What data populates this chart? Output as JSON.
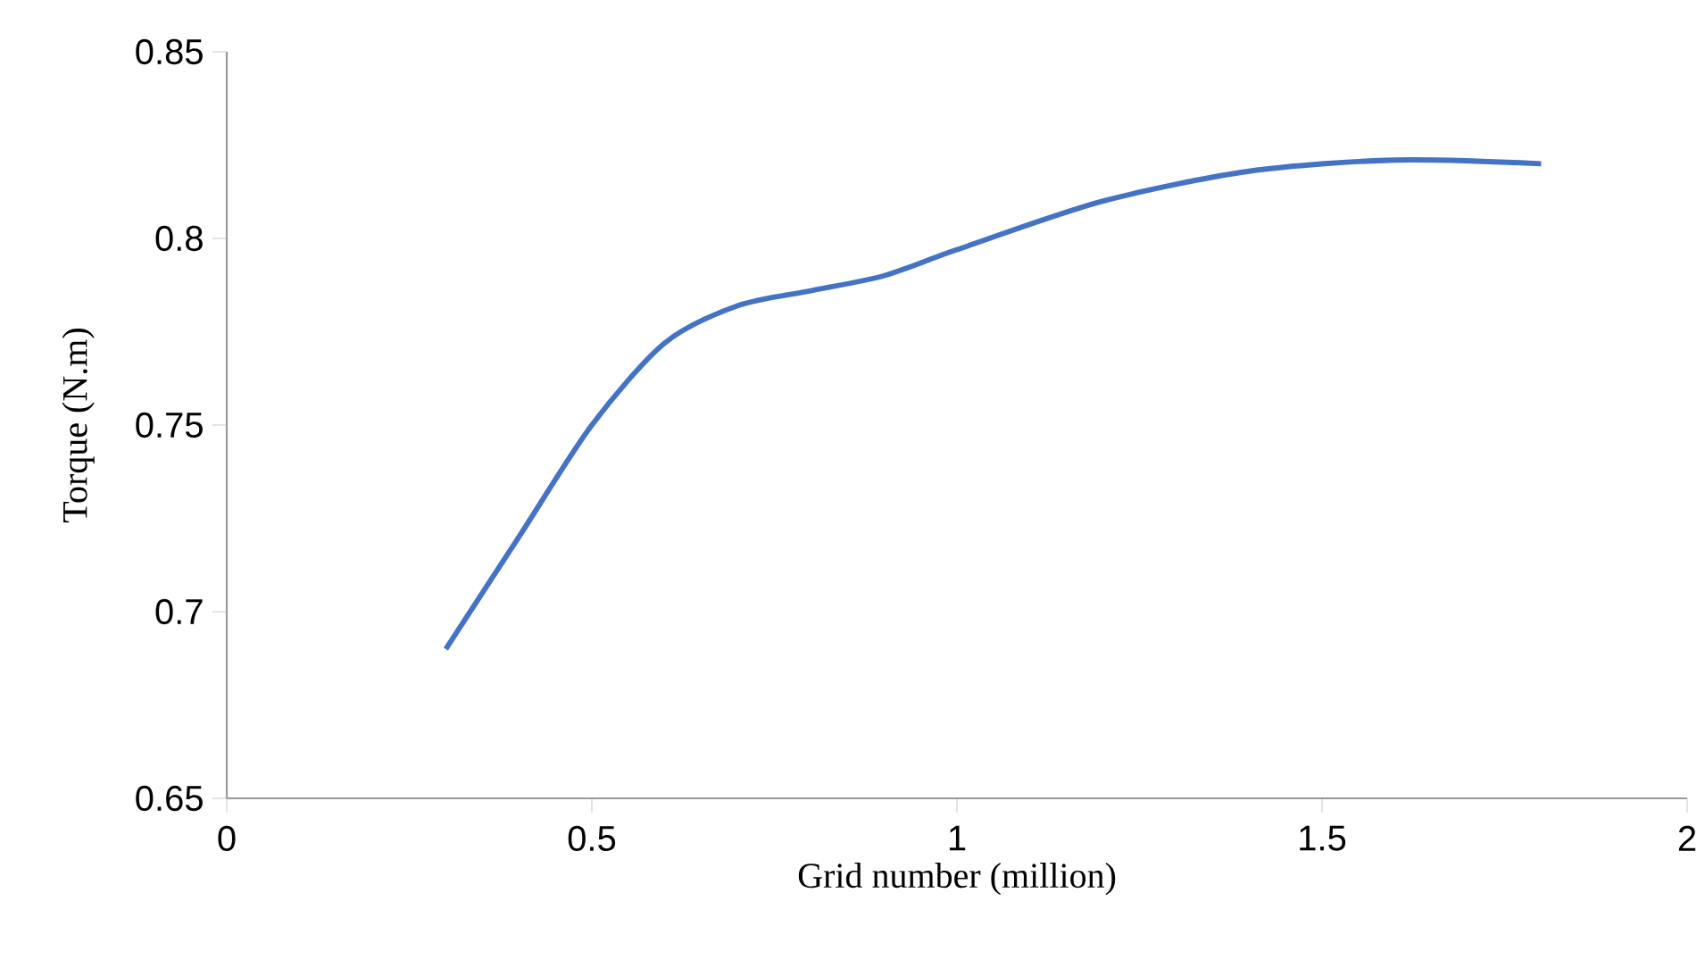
{
  "chart_data": {
    "type": "line",
    "xlabel": "Grid number (million)",
    "ylabel": "Torque (N.m)",
    "x": [
      0.3,
      0.4,
      0.5,
      0.6,
      0.7,
      0.8,
      0.9,
      1.0,
      1.2,
      1.4,
      1.6,
      1.8
    ],
    "series": [
      {
        "color": "#4472c4",
        "values": [
          0.69,
          0.72,
          0.75,
          0.772,
          0.782,
          0.786,
          0.79,
          0.797,
          0.81,
          0.818,
          0.821,
          0.82
        ]
      }
    ],
    "xlim": [
      0,
      2
    ],
    "xticks": [
      0,
      0.5,
      1,
      1.5,
      2
    ],
    "ylim": [
      0.65,
      0.85
    ],
    "yticks": [
      0.65,
      0.7,
      0.75,
      0.8,
      0.85
    ],
    "grid": false,
    "legend": false,
    "marker": "none",
    "line_style": "solid"
  }
}
